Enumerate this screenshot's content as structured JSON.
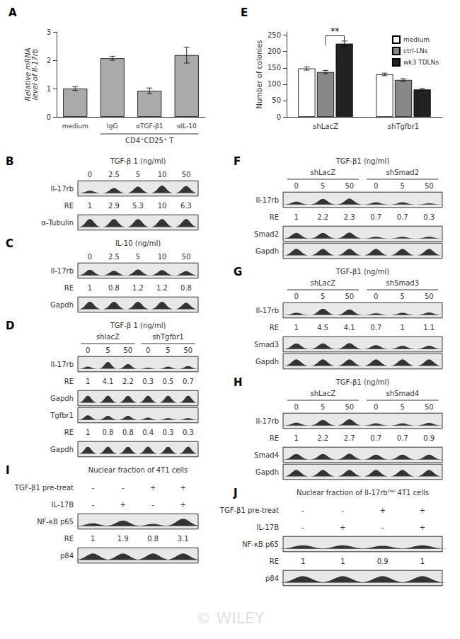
{
  "watermark": "© WILEY",
  "chart_data": [
    {
      "type": "bar",
      "panel": "A",
      "categories": [
        "medium",
        "IgG",
        "αTGF-β1",
        "αIL-10"
      ],
      "values": [
        1.0,
        2.07,
        0.92,
        2.18
      ],
      "errors": [
        0.07,
        0.07,
        0.1,
        0.28
      ],
      "ylabel": "Relative mRNA\nlevel of Il-17rb",
      "color": "#aaaaaa",
      "ylim": [
        0,
        3
      ],
      "yticks": [
        0,
        1,
        2,
        3
      ],
      "grid": false,
      "annotations": [
        {
          "text": "CD4⁺CD25⁺ T",
          "from": "IgG",
          "to": "αIL-10"
        }
      ]
    },
    {
      "type": "bar",
      "panel": "E",
      "categories": [
        "shLacZ",
        "shTgfbr1"
      ],
      "series": [
        {
          "name": "medium",
          "color": "white",
          "values": [
            148,
            130
          ],
          "errors": [
            5,
            4
          ]
        },
        {
          "name": "ctrl-LNs",
          "color": "#888888",
          "values": [
            137,
            113
          ],
          "errors": [
            5,
            4
          ]
        },
        {
          "name": "wk3 TDLNs",
          "color": "#222222",
          "values": [
            224,
            84
          ],
          "errors": [
            8,
            3
          ]
        }
      ],
      "ylabel": "Number of colonies",
      "ylim": [
        0,
        260
      ],
      "yticks": [
        0,
        50,
        100,
        150,
        200,
        250
      ],
      "grid": false,
      "legend": "upper right",
      "annotations": [
        {
          "text": "**",
          "category": "shLacZ",
          "from": "ctrl-LNs",
          "to": "wk3 TDLNs",
          "y": 248,
          "legs": [
            218,
            233
          ]
        }
      ]
    },
    {
      "type": "blot",
      "panel": "B",
      "title": "TGF-β 1 (ng/ml)",
      "lanes": [
        "0",
        "2.5",
        "5",
        "10",
        "50"
      ],
      "rows": [
        {
          "label": "Il-17rb",
          "intensities": [
            0.25,
            0.5,
            0.65,
            0.75,
            0.7
          ]
        },
        {
          "label": "RE",
          "values": [
            1,
            2.9,
            5.3,
            10,
            6.3
          ]
        },
        {
          "label": "α-Tubulin",
          "intensities": [
            0.8,
            0.8,
            0.8,
            0.8,
            0.8
          ]
        }
      ]
    },
    {
      "type": "blot",
      "panel": "C",
      "title": "IL-10 (ng/ml)",
      "lanes": [
        "0",
        "2.5",
        "5",
        "10",
        "50"
      ],
      "rows": [
        {
          "label": "Il-17rb",
          "intensities": [
            0.55,
            0.45,
            0.58,
            0.52,
            0.42
          ]
        },
        {
          "label": "RE",
          "values": [
            1,
            0.8,
            1.2,
            1.2,
            0.8
          ]
        },
        {
          "label": "Gapdh",
          "intensities": [
            0.75,
            0.75,
            0.75,
            0.75,
            0.65
          ]
        }
      ]
    },
    {
      "type": "blot",
      "panel": "D",
      "title": "TGF-β 1 (ng/ml)",
      "groups": [
        "shlacZ",
        "shTgfbr1"
      ],
      "lanes": [
        "0",
        "5",
        "50",
        "0",
        "5",
        "50"
      ],
      "rows": [
        {
          "label": "Il-17rb",
          "intensities": [
            0.22,
            0.68,
            0.48,
            0.12,
            0.22,
            0.28
          ]
        },
        {
          "label": "RE",
          "values": [
            1,
            4.1,
            2.2,
            0.3,
            0.5,
            0.7
          ]
        },
        {
          "label": "Gapdh",
          "intensities": [
            0.7,
            0.7,
            0.7,
            0.7,
            0.7,
            0.7
          ]
        },
        {
          "label": "Tgfbr1",
          "intensities": [
            0.45,
            0.4,
            0.4,
            0.22,
            0.18,
            0.18
          ]
        },
        {
          "label": "RE",
          "values": [
            1,
            0.8,
            0.8,
            0.4,
            0.3,
            0.3
          ]
        },
        {
          "label": "Gapdh",
          "intensities": [
            0.7,
            0.7,
            0.7,
            0.7,
            0.7,
            0.7
          ]
        }
      ]
    },
    {
      "type": "blot",
      "panel": "F",
      "title": "TGF-β1 (ng/ml)",
      "groups": [
        "shLacZ",
        "shSmad2"
      ],
      "lanes": [
        "0",
        "5",
        "50",
        "0",
        "5",
        "50"
      ],
      "rows": [
        {
          "label": "Il-17rb",
          "intensities": [
            0.28,
            0.55,
            0.58,
            0.22,
            0.22,
            0.12
          ]
        },
        {
          "label": "RE",
          "values": [
            1,
            2.2,
            2.3,
            0.7,
            0.7,
            0.3
          ]
        },
        {
          "label": "Smad2",
          "intensities": [
            0.55,
            0.55,
            0.58,
            0.18,
            0.18,
            0.18
          ]
        },
        {
          "label": "Gapdh",
          "intensities": [
            0.65,
            0.65,
            0.65,
            0.65,
            0.65,
            0.65
          ]
        }
      ]
    },
    {
      "type": "blot",
      "panel": "G",
      "title": "TGF-β1 (ng/ml)",
      "groups": [
        "shLacZ",
        "shSmad3"
      ],
      "lanes": [
        "0",
        "5",
        "50",
        "0",
        "5",
        "50"
      ],
      "rows": [
        {
          "label": "Il-17rb",
          "intensities": [
            0.22,
            0.62,
            0.55,
            0.18,
            0.22,
            0.25
          ]
        },
        {
          "label": "RE",
          "values": [
            1,
            4.5,
            4.1,
            0.7,
            1,
            1.1
          ]
        },
        {
          "label": "Smad3",
          "intensities": [
            0.55,
            0.55,
            0.58,
            0.38,
            0.32,
            0.32
          ]
        },
        {
          "label": "Gapdh",
          "intensities": [
            0.65,
            0.65,
            0.65,
            0.65,
            0.65,
            0.65
          ]
        }
      ]
    },
    {
      "type": "blot",
      "panel": "H",
      "title": "TGF-β1 (ng/ml)",
      "groups": [
        "shLacZ",
        "shSmad4"
      ],
      "lanes": [
        "0",
        "5",
        "50",
        "0",
        "5",
        "50"
      ],
      "rows": [
        {
          "label": "Il-17rb",
          "intensities": [
            0.28,
            0.55,
            0.62,
            0.22,
            0.22,
            0.26
          ]
        },
        {
          "label": "RE",
          "values": [
            1,
            2.2,
            2.7,
            0.7,
            0.7,
            0.9
          ]
        },
        {
          "label": "Smad4",
          "intensities": [
            0.55,
            0.55,
            0.58,
            0.48,
            0.48,
            0.48
          ]
        },
        {
          "label": "Gapdh",
          "intensities": [
            0.65,
            0.65,
            0.65,
            0.65,
            0.65,
            0.65
          ]
        }
      ]
    },
    {
      "type": "blot",
      "panel": "I",
      "title": "Nuclear fraction of 4T1 cells",
      "rows": [
        {
          "label": "TGF-β1 pre-treat",
          "marks": [
            "-",
            "-",
            "+",
            "+"
          ]
        },
        {
          "label": "IL-17B",
          "marks": [
            "-",
            "+",
            "-",
            "+"
          ]
        },
        {
          "label": "NF-κB p65",
          "intensities": [
            0.28,
            0.55,
            0.22,
            0.72
          ]
        },
        {
          "label": "RE",
          "values": [
            1,
            1.9,
            0.8,
            3.1
          ]
        },
        {
          "label": "p84",
          "intensities": [
            0.65,
            0.65,
            0.65,
            0.65
          ]
        }
      ]
    },
    {
      "type": "blot",
      "panel": "J",
      "title": "Nuclear fraction of Il-17rbᴰᵉˡ 4T1 cells",
      "rows": [
        {
          "label": "TGF-β1 pre-treat",
          "marks": [
            "-",
            "-",
            "+",
            "+"
          ]
        },
        {
          "label": "IL-17B",
          "marks": [
            "-",
            "+",
            "-",
            "+"
          ]
        },
        {
          "label": "NF-κB p65",
          "intensities": [
            0.35,
            0.35,
            0.3,
            0.35
          ]
        },
        {
          "label": "RE",
          "values": [
            1,
            1,
            0.9,
            1
          ]
        },
        {
          "label": "p84",
          "intensities": [
            0.65,
            0.65,
            0.65,
            0.65
          ]
        }
      ]
    }
  ]
}
